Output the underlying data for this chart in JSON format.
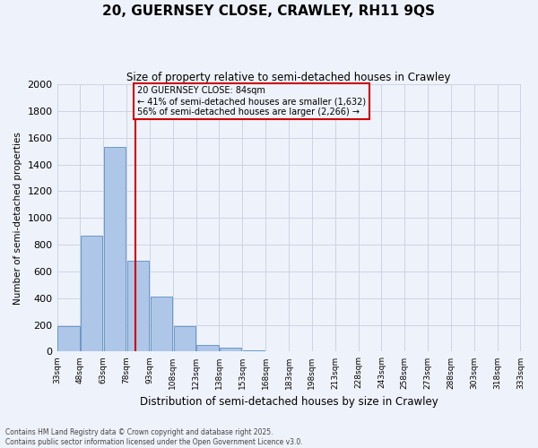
{
  "title_line1": "20, GUERNSEY CLOSE, CRAWLEY, RH11 9QS",
  "title_line2": "Size of property relative to semi-detached houses in Crawley",
  "xlabel": "Distribution of semi-detached houses by size in Crawley",
  "ylabel": "Number of semi-detached properties",
  "property_size": 84,
  "property_label": "20 GUERNSEY CLOSE: 84sqm",
  "pct_smaller": 41,
  "pct_larger": 56,
  "n_smaller": 1632,
  "n_larger": 2266,
  "bar_color": "#aec6e8",
  "bar_edge_color": "#5a8fc2",
  "vline_color": "#cc0000",
  "background_color": "#eef2fa",
  "grid_color": "#c8cfe0",
  "bins": [
    33,
    48,
    63,
    78,
    93,
    108,
    123,
    138,
    153,
    168,
    183,
    198,
    213,
    228,
    243,
    258,
    273,
    288,
    303,
    318,
    333
  ],
  "bin_labels": [
    "33sqm",
    "48sqm",
    "63sqm",
    "78sqm",
    "93sqm",
    "108sqm",
    "123sqm",
    "138sqm",
    "153sqm",
    "168sqm",
    "183sqm",
    "198sqm",
    "213sqm",
    "228sqm",
    "243sqm",
    "258sqm",
    "273sqm",
    "288sqm",
    "303sqm",
    "318sqm",
    "333sqm"
  ],
  "counts": [
    190,
    870,
    1530,
    680,
    410,
    190,
    50,
    30,
    10,
    5,
    3,
    2,
    1,
    1,
    1,
    1,
    0,
    0,
    0,
    0
  ],
  "ylim": [
    0,
    2000
  ],
  "yticks": [
    0,
    200,
    400,
    600,
    800,
    1000,
    1200,
    1400,
    1600,
    1800,
    2000
  ],
  "footer_line1": "Contains HM Land Registry data © Crown copyright and database right 2025.",
  "footer_line2": "Contains public sector information licensed under the Open Government Licence v3.0."
}
